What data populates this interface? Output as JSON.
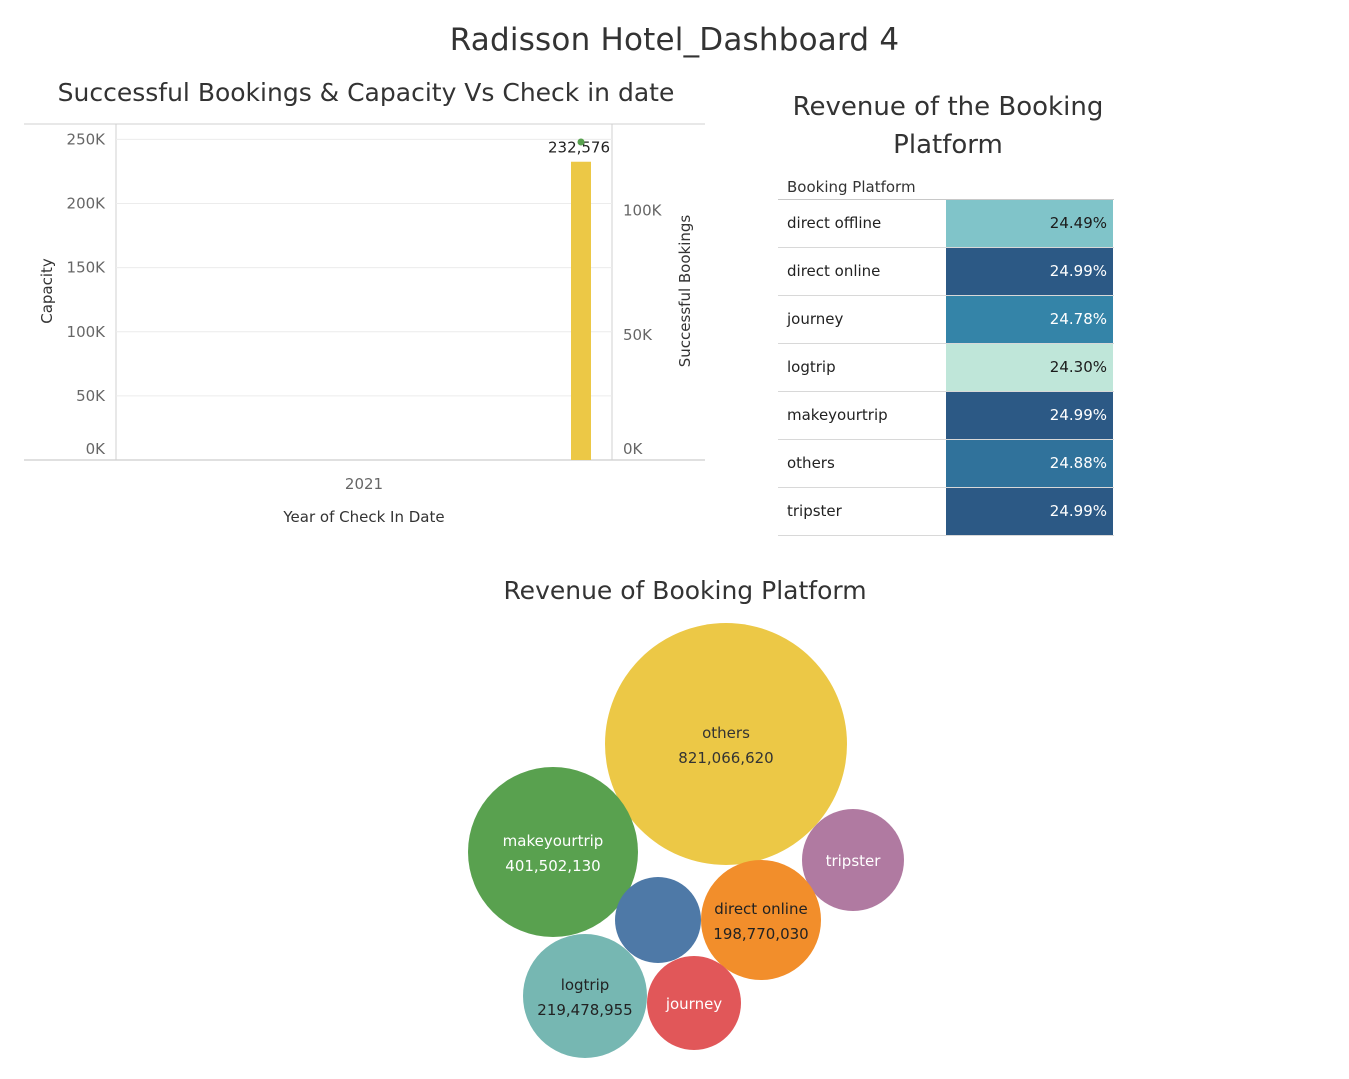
{
  "dashboard": {
    "title": "Radisson Hotel_Dashboard 4"
  },
  "chart_data": [
    {
      "type": "bar",
      "title": "Successful Bookings & Capacity Vs Check in date",
      "xlabel": "Year of Check In Date",
      "ylabel": "Capacity",
      "y2label": "Successful Bookings",
      "categories": [
        "2021"
      ],
      "series": [
        {
          "name": "Capacity",
          "values": [
            232576
          ],
          "color": "#ecc846"
        },
        {
          "name": "Successful Bookings",
          "values": [
            134590
          ],
          "color": "#59a14f",
          "mark": "point"
        }
      ],
      "data_labels": [
        "232,576"
      ],
      "ylim": [
        0,
        262000
      ],
      "y2lim": [
        0,
        134590
      ],
      "yticks": [
        "0K",
        "50K",
        "100K",
        "150K",
        "200K",
        "250K"
      ],
      "y2ticks": [
        "0K",
        "50K",
        "100K"
      ],
      "grid": true
    },
    {
      "type": "table",
      "title": "Revenue of the Booking Platform",
      "column_header": "Booking Platform",
      "rows": [
        {
          "name": "direct offline",
          "value": "24.49%",
          "color": "#80c4c9",
          "text_color": "#1b1b1b"
        },
        {
          "name": "direct online",
          "value": "24.99%",
          "color": "#2c5985",
          "text_color": "#ffffff"
        },
        {
          "name": "journey",
          "value": "24.78%",
          "color": "#3484a8",
          "text_color": "#ffffff"
        },
        {
          "name": "logtrip",
          "value": "24.30%",
          "color": "#bfe6d9",
          "text_color": "#1b1b1b"
        },
        {
          "name": "makeyourtrip",
          "value": "24.99%",
          "color": "#2c5985",
          "text_color": "#ffffff"
        },
        {
          "name": "others",
          "value": "24.88%",
          "color": "#30729b",
          "text_color": "#ffffff"
        },
        {
          "name": "tripster",
          "value": "24.99%",
          "color": "#2c5985",
          "text_color": "#ffffff"
        }
      ]
    },
    {
      "type": "bubble",
      "title": "Revenue of Booking Platform",
      "bubbles": [
        {
          "name": "others",
          "value": 821066620,
          "label": "821,066,620",
          "color": "#ecc846",
          "text_color": "#333333"
        },
        {
          "name": "makeyourtrip",
          "value": 401502130,
          "label": "401,502,130",
          "color": "#59a14f",
          "text_color": "#ffffff"
        },
        {
          "name": "tripster",
          "value": 190000000,
          "label": "",
          "color": "#b07aa1",
          "text_color": "#ffffff"
        },
        {
          "name": "direct online",
          "value": 198770030,
          "label": "198,770,030",
          "color": "#f28e2b",
          "text_color": "#222222"
        },
        {
          "name": "direct offline",
          "value": 110000000,
          "label": "",
          "show_name": false,
          "color": "#4e79a7",
          "text_color": "#ffffff"
        },
        {
          "name": "logtrip",
          "value": 219478955,
          "label": "219,478,955",
          "color": "#76b7b2",
          "text_color": "#222222"
        },
        {
          "name": "journey",
          "value": 125000000,
          "label": "",
          "color": "#e15759",
          "text_color": "#ffffff"
        }
      ]
    }
  ]
}
